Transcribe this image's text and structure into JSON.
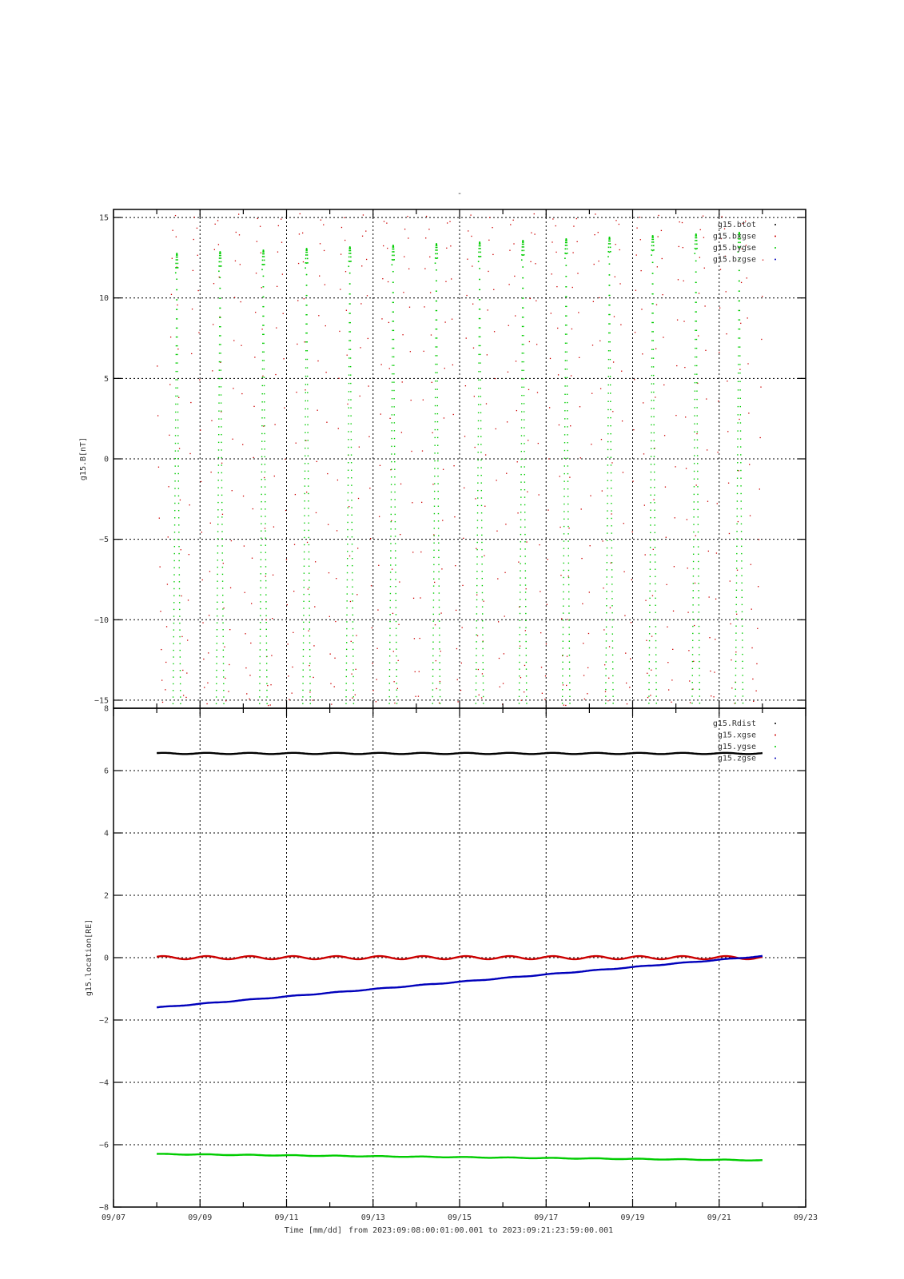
{
  "page_mark": "-",
  "footer": {
    "xlabel": "Time [mm/dd]",
    "range_text": "from 2023:09:08:00:01:00.001  to  2023:09:21:23:59:00.001"
  },
  "colors": {
    "black": "#000000",
    "red": "#cc0000",
    "green": "#00cc00",
    "blue": "#0000bb"
  },
  "chart_data": [
    {
      "type": "scatter",
      "ylabel": "g15.B[nT]",
      "ylim": [
        -15.5,
        15.5
      ],
      "yticks": [
        15,
        10,
        5,
        0,
        -5,
        -10,
        -15
      ],
      "xlim": [
        "09/07",
        "09/23"
      ],
      "xtick_labels": [
        "09/07",
        "09/09",
        "09/11",
        "09/13",
        "09/15",
        "09/17",
        "09/19",
        "09/21",
        "09/23"
      ],
      "grid": true,
      "legend": "top-right",
      "legend_entries": [
        "g15.btot",
        "g15.bxgse",
        "g15.bygse",
        "g15.bzgse"
      ],
      "series": [
        {
          "name": "g15.bxgse",
          "color": "#cc0000",
          "x_start_day": 8.0,
          "x_end_day": 22.0,
          "period_days": 1.0,
          "amplitude": 16,
          "peak_day_offset": 0.0
        },
        {
          "name": "g15.bygse",
          "color": "#00cc00",
          "x_start_day": 8.0,
          "x_end_day": 22.0,
          "period_days": 1.0,
          "amplitude": 16,
          "peak_days": [
            8.45,
            9.45,
            10.45,
            11.45,
            12.45,
            13.45,
            14.45,
            15.45,
            16.45,
            17.45,
            18.45,
            19.45,
            20.45,
            21.45
          ],
          "peak_values": [
            12.8,
            12.9,
            13.0,
            13.1,
            13.2,
            13.3,
            13.4,
            13.5,
            13.6,
            13.7,
            13.8,
            13.9,
            14.0,
            14.1
          ]
        }
      ]
    },
    {
      "type": "line",
      "ylabel": "g15.location[RE]",
      "ylim": [
        -8,
        8
      ],
      "yticks": [
        8,
        6,
        4,
        2,
        0,
        -2,
        -4,
        -6,
        -8
      ],
      "xlim": [
        "09/07",
        "09/23"
      ],
      "xtick_labels": [
        "09/07",
        "09/09",
        "09/11",
        "09/13",
        "09/15",
        "09/17",
        "09/19",
        "09/21",
        "09/23"
      ],
      "grid": true,
      "legend": "top-right",
      "legend_entries": [
        "g15.Rdist",
        "g15.xgse",
        "g15.ygse",
        "g15.zgse"
      ],
      "series": [
        {
          "name": "g15.Rdist",
          "color": "#000000",
          "x_days": [
            8.0,
            22.0
          ],
          "y": [
            6.55,
            6.55
          ],
          "wiggle": 0.02
        },
        {
          "name": "g15.xgse",
          "color": "#cc0000",
          "x_days": [
            8.0,
            22.0
          ],
          "y": [
            0.0,
            0.0
          ],
          "wiggle": 0.05
        },
        {
          "name": "g15.ygse",
          "color": "#00cc00",
          "x_days": [
            8.0,
            22.0
          ],
          "y": [
            -6.3,
            -6.5
          ],
          "wiggle": 0.01
        },
        {
          "name": "g15.zgse",
          "color": "#0000bb",
          "x_days": [
            8.0,
            22.0
          ],
          "y": [
            -1.6,
            0.05
          ],
          "wiggle": 0.01
        }
      ]
    }
  ]
}
